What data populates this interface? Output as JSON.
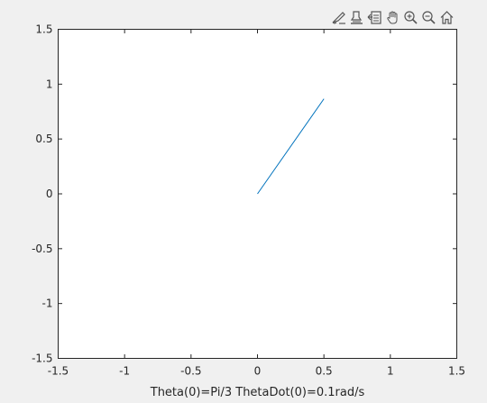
{
  "toolbar": {
    "icons": [
      "brush-icon",
      "data-tips-icon",
      "export-icon",
      "pan-icon",
      "zoom-in-icon",
      "zoom-out-icon",
      "home-icon"
    ]
  },
  "chart_data": {
    "type": "line",
    "title": "",
    "xlabel": "Theta(0)=Pi/3 ThetaDot(0)=0.1rad/s",
    "ylabel": "",
    "xlim": [
      -1.5,
      1.5
    ],
    "ylim": [
      -1.5,
      1.5
    ],
    "xticks": [
      -1.5,
      -1,
      -0.5,
      0,
      0.5,
      1,
      1.5
    ],
    "xtick_labels": [
      "-1.5",
      "-1",
      "-0.5",
      "0",
      "0.5",
      "1",
      "1.5"
    ],
    "yticks": [
      -1.5,
      -1,
      -0.5,
      0,
      0.5,
      1,
      1.5
    ],
    "ytick_labels": [
      "-1.5",
      "-1",
      "-0.5",
      "0",
      "0.5",
      "1",
      "1.5"
    ],
    "grid": false,
    "series": [
      {
        "color": "#0072bd",
        "x": [
          0,
          0.5
        ],
        "y": [
          0,
          0.866
        ]
      }
    ]
  }
}
